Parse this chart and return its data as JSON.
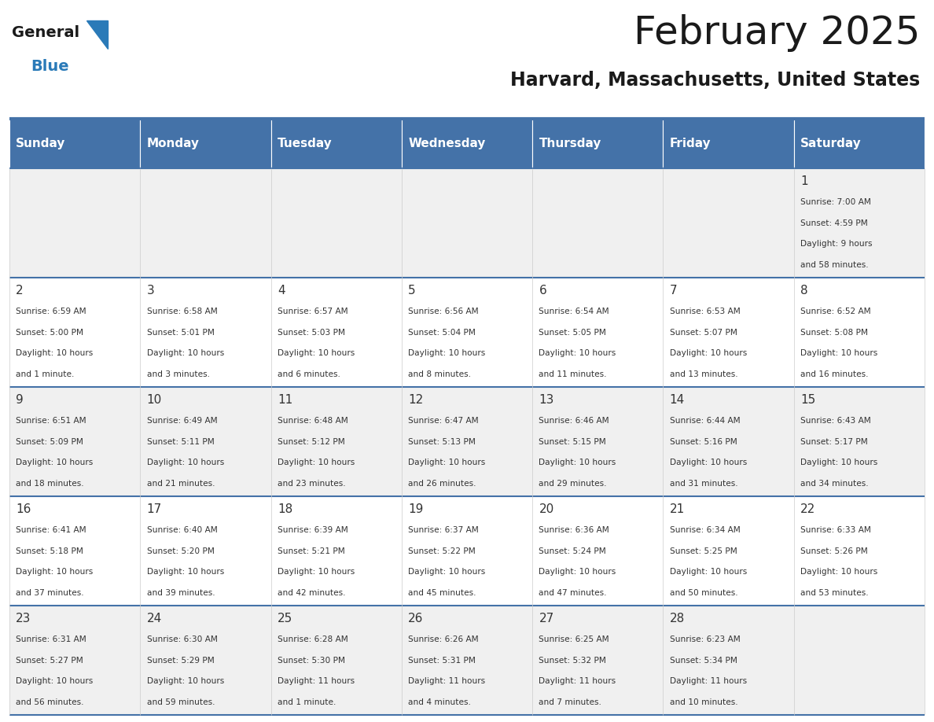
{
  "title": "February 2025",
  "subtitle": "Harvard, Massachusetts, United States",
  "header_color": "#4472a8",
  "header_text_color": "#ffffff",
  "cell_bg_odd": "#f0f0f0",
  "cell_bg_even": "#ffffff",
  "day_headers": [
    "Sunday",
    "Monday",
    "Tuesday",
    "Wednesday",
    "Thursday",
    "Friday",
    "Saturday"
  ],
  "title_color": "#1a1a1a",
  "subtitle_color": "#1a1a1a",
  "date_color": "#333333",
  "info_color": "#333333",
  "divider_color": "#4472a8",
  "row_divider_color": "#4472a8",
  "vert_line_color": "#cccccc",
  "logo_general_color": "#1a1a1a",
  "logo_blue_color": "#2a7ab8",
  "days": [
    {
      "date": 1,
      "row": 0,
      "col": 6,
      "sunrise": "7:00 AM",
      "sunset": "4:59 PM",
      "daylight_h": "9 hours",
      "daylight_m": "and 58 minutes."
    },
    {
      "date": 2,
      "row": 1,
      "col": 0,
      "sunrise": "6:59 AM",
      "sunset": "5:00 PM",
      "daylight_h": "10 hours",
      "daylight_m": "and 1 minute."
    },
    {
      "date": 3,
      "row": 1,
      "col": 1,
      "sunrise": "6:58 AM",
      "sunset": "5:01 PM",
      "daylight_h": "10 hours",
      "daylight_m": "and 3 minutes."
    },
    {
      "date": 4,
      "row": 1,
      "col": 2,
      "sunrise": "6:57 AM",
      "sunset": "5:03 PM",
      "daylight_h": "10 hours",
      "daylight_m": "and 6 minutes."
    },
    {
      "date": 5,
      "row": 1,
      "col": 3,
      "sunrise": "6:56 AM",
      "sunset": "5:04 PM",
      "daylight_h": "10 hours",
      "daylight_m": "and 8 minutes."
    },
    {
      "date": 6,
      "row": 1,
      "col": 4,
      "sunrise": "6:54 AM",
      "sunset": "5:05 PM",
      "daylight_h": "10 hours",
      "daylight_m": "and 11 minutes."
    },
    {
      "date": 7,
      "row": 1,
      "col": 5,
      "sunrise": "6:53 AM",
      "sunset": "5:07 PM",
      "daylight_h": "10 hours",
      "daylight_m": "and 13 minutes."
    },
    {
      "date": 8,
      "row": 1,
      "col": 6,
      "sunrise": "6:52 AM",
      "sunset": "5:08 PM",
      "daylight_h": "10 hours",
      "daylight_m": "and 16 minutes."
    },
    {
      "date": 9,
      "row": 2,
      "col": 0,
      "sunrise": "6:51 AM",
      "sunset": "5:09 PM",
      "daylight_h": "10 hours",
      "daylight_m": "and 18 minutes."
    },
    {
      "date": 10,
      "row": 2,
      "col": 1,
      "sunrise": "6:49 AM",
      "sunset": "5:11 PM",
      "daylight_h": "10 hours",
      "daylight_m": "and 21 minutes."
    },
    {
      "date": 11,
      "row": 2,
      "col": 2,
      "sunrise": "6:48 AM",
      "sunset": "5:12 PM",
      "daylight_h": "10 hours",
      "daylight_m": "and 23 minutes."
    },
    {
      "date": 12,
      "row": 2,
      "col": 3,
      "sunrise": "6:47 AM",
      "sunset": "5:13 PM",
      "daylight_h": "10 hours",
      "daylight_m": "and 26 minutes."
    },
    {
      "date": 13,
      "row": 2,
      "col": 4,
      "sunrise": "6:46 AM",
      "sunset": "5:15 PM",
      "daylight_h": "10 hours",
      "daylight_m": "and 29 minutes."
    },
    {
      "date": 14,
      "row": 2,
      "col": 5,
      "sunrise": "6:44 AM",
      "sunset": "5:16 PM",
      "daylight_h": "10 hours",
      "daylight_m": "and 31 minutes."
    },
    {
      "date": 15,
      "row": 2,
      "col": 6,
      "sunrise": "6:43 AM",
      "sunset": "5:17 PM",
      "daylight_h": "10 hours",
      "daylight_m": "and 34 minutes."
    },
    {
      "date": 16,
      "row": 3,
      "col": 0,
      "sunrise": "6:41 AM",
      "sunset": "5:18 PM",
      "daylight_h": "10 hours",
      "daylight_m": "and 37 minutes."
    },
    {
      "date": 17,
      "row": 3,
      "col": 1,
      "sunrise": "6:40 AM",
      "sunset": "5:20 PM",
      "daylight_h": "10 hours",
      "daylight_m": "and 39 minutes."
    },
    {
      "date": 18,
      "row": 3,
      "col": 2,
      "sunrise": "6:39 AM",
      "sunset": "5:21 PM",
      "daylight_h": "10 hours",
      "daylight_m": "and 42 minutes."
    },
    {
      "date": 19,
      "row": 3,
      "col": 3,
      "sunrise": "6:37 AM",
      "sunset": "5:22 PM",
      "daylight_h": "10 hours",
      "daylight_m": "and 45 minutes."
    },
    {
      "date": 20,
      "row": 3,
      "col": 4,
      "sunrise": "6:36 AM",
      "sunset": "5:24 PM",
      "daylight_h": "10 hours",
      "daylight_m": "and 47 minutes."
    },
    {
      "date": 21,
      "row": 3,
      "col": 5,
      "sunrise": "6:34 AM",
      "sunset": "5:25 PM",
      "daylight_h": "10 hours",
      "daylight_m": "and 50 minutes."
    },
    {
      "date": 22,
      "row": 3,
      "col": 6,
      "sunrise": "6:33 AM",
      "sunset": "5:26 PM",
      "daylight_h": "10 hours",
      "daylight_m": "and 53 minutes."
    },
    {
      "date": 23,
      "row": 4,
      "col": 0,
      "sunrise": "6:31 AM",
      "sunset": "5:27 PM",
      "daylight_h": "10 hours",
      "daylight_m": "and 56 minutes."
    },
    {
      "date": 24,
      "row": 4,
      "col": 1,
      "sunrise": "6:30 AM",
      "sunset": "5:29 PM",
      "daylight_h": "10 hours",
      "daylight_m": "and 59 minutes."
    },
    {
      "date": 25,
      "row": 4,
      "col": 2,
      "sunrise": "6:28 AM",
      "sunset": "5:30 PM",
      "daylight_h": "11 hours",
      "daylight_m": "and 1 minute."
    },
    {
      "date": 26,
      "row": 4,
      "col": 3,
      "sunrise": "6:26 AM",
      "sunset": "5:31 PM",
      "daylight_h": "11 hours",
      "daylight_m": "and 4 minutes."
    },
    {
      "date": 27,
      "row": 4,
      "col": 4,
      "sunrise": "6:25 AM",
      "sunset": "5:32 PM",
      "daylight_h": "11 hours",
      "daylight_m": "and 7 minutes."
    },
    {
      "date": 28,
      "row": 4,
      "col": 5,
      "sunrise": "6:23 AM",
      "sunset": "5:34 PM",
      "daylight_h": "11 hours",
      "daylight_m": "and 10 minutes."
    }
  ]
}
